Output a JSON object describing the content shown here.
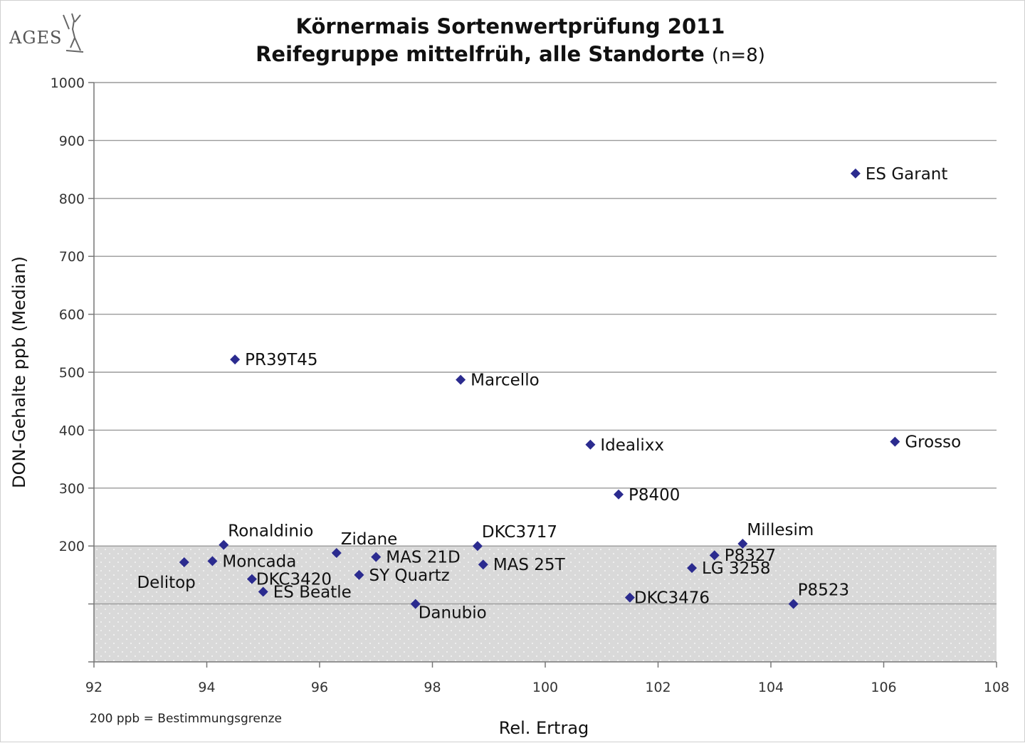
{
  "logo": {
    "text": "AGES"
  },
  "chart_data": {
    "type": "scatter",
    "title": "Körnermais Sortenwertprüfung 2011",
    "subtitle": "Reifegruppe mittelfrüh, alle Standorte",
    "subtitle_suffix": "(n=8)",
    "xlabel": "Rel. Ertrag",
    "ylabel": "DON-Gehalte ppb (Median)",
    "xlim": [
      92,
      108
    ],
    "ylim": [
      0,
      1000
    ],
    "xticks": [
      92,
      94,
      96,
      98,
      100,
      102,
      104,
      106,
      108
    ],
    "yticks": [
      200,
      300,
      400,
      500,
      600,
      700,
      800,
      900,
      1000
    ],
    "y_gridlines": [
      100,
      200,
      300,
      400,
      500,
      600,
      700,
      800,
      900,
      1000
    ],
    "grid": true,
    "shaded_region": {
      "y_from": 0,
      "y_to": 200,
      "color": "#d9d9d9"
    },
    "marker_color": "#2b2b8f",
    "footnote": "200 ppb = Bestimmungsgrenze",
    "points": [
      {
        "label": "ES Garant",
        "x": 105.5,
        "y": 843,
        "pos": "right"
      },
      {
        "label": "PR39T45",
        "x": 94.5,
        "y": 522,
        "pos": "right"
      },
      {
        "label": "Marcello",
        "x": 98.5,
        "y": 487,
        "pos": "right"
      },
      {
        "label": "Idealixx",
        "x": 100.8,
        "y": 375,
        "pos": "right"
      },
      {
        "label": "Grosso",
        "x": 106.2,
        "y": 380,
        "pos": "right"
      },
      {
        "label": "P8400",
        "x": 101.3,
        "y": 289,
        "pos": "right"
      },
      {
        "label": "Ronaldinio",
        "x": 94.3,
        "y": 202,
        "pos": "above-right"
      },
      {
        "label": "Zidane",
        "x": 96.3,
        "y": 188,
        "pos": "above-right"
      },
      {
        "label": "DKC3717",
        "x": 98.8,
        "y": 200,
        "pos": "above-right"
      },
      {
        "label": "Millesim",
        "x": 103.5,
        "y": 204,
        "pos": "above-right"
      },
      {
        "label": "Delitop",
        "x": 93.6,
        "y": 172,
        "pos": "below-left"
      },
      {
        "label": "Moncada",
        "x": 94.1,
        "y": 174,
        "pos": "right"
      },
      {
        "label": "MAS 21D",
        "x": 97.0,
        "y": 181,
        "pos": "right"
      },
      {
        "label": "MAS 25T",
        "x": 98.9,
        "y": 168,
        "pos": "right"
      },
      {
        "label": "P8327",
        "x": 103.0,
        "y": 184,
        "pos": "right"
      },
      {
        "label": "LG 3258",
        "x": 102.6,
        "y": 162,
        "pos": "right"
      },
      {
        "label": "DKC3420",
        "x": 94.8,
        "y": 143,
        "pos": "right-tight"
      },
      {
        "label": "SY Quartz",
        "x": 96.7,
        "y": 150,
        "pos": "right"
      },
      {
        "label": "ES Beatle",
        "x": 95.0,
        "y": 121,
        "pos": "right"
      },
      {
        "label": "DKC3476",
        "x": 101.5,
        "y": 111,
        "pos": "right-tight"
      },
      {
        "label": "P8523",
        "x": 104.4,
        "y": 100,
        "pos": "above-right"
      },
      {
        "label": "Danubio",
        "x": 97.7,
        "y": 100,
        "pos": "below-right"
      }
    ]
  }
}
